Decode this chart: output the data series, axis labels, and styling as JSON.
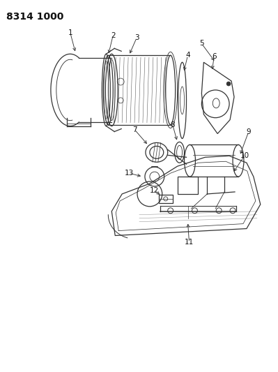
{
  "title": "8314 1000",
  "bg_color": "#ffffff",
  "fig_width": 3.99,
  "fig_height": 5.33,
  "dpi": 100,
  "line_color": "#333333",
  "text_color": "#111111",
  "label_fontsize": 7.5,
  "title_fontsize": 10
}
